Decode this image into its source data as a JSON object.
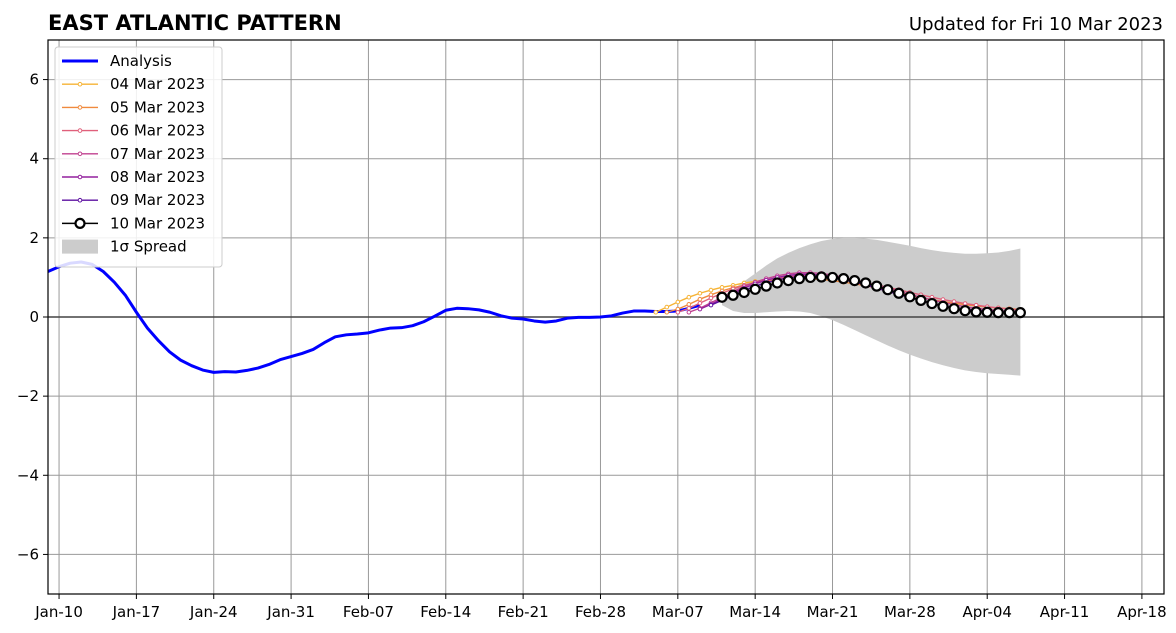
{
  "chart_data": {
    "type": "line",
    "title": "EAST ATLANTIC PATTERN",
    "subtitle": "Updated for Fri 10 Mar 2023",
    "xlabel": "",
    "ylabel": "",
    "xlim": [
      "2023-01-09",
      "2023-04-20"
    ],
    "ylim": [
      -7,
      7
    ],
    "x_ticks": [
      "Jan-10",
      "Jan-17",
      "Jan-24",
      "Jan-31",
      "Feb-07",
      "Feb-14",
      "Feb-21",
      "Feb-28",
      "Mar-07",
      "Mar-14",
      "Mar-21",
      "Mar-28",
      "Apr-04",
      "Apr-11",
      "Apr-18"
    ],
    "y_ticks": [
      6,
      4,
      2,
      0,
      -2,
      -4,
      -6
    ],
    "y_tick_labels": [
      "6",
      "4",
      "2",
      "0",
      "−2",
      "−4",
      "−6"
    ],
    "grid": true,
    "legend_position": "top-left",
    "colors": {
      "analysis": "#0000ff",
      "spread": "#cccccc",
      "zero_line": "#444444",
      "grid": "#999999",
      "mar04": "#f6b335",
      "mar05": "#f08a3e",
      "mar06": "#e0607b",
      "mar07": "#c0418f",
      "mar08": "#93209e",
      "mar09": "#5c0fa0",
      "mar10": "#000000"
    },
    "legend": [
      "Analysis",
      "04 Mar 2023",
      "05 Mar 2023",
      "06 Mar 2023",
      "07 Mar 2023",
      "08 Mar 2023",
      "09 Mar 2023",
      "10 Mar 2023",
      "1σ Spread"
    ],
    "analysis": {
      "name": "Analysis",
      "points": [
        [
          "2023-01-09",
          1.15
        ],
        [
          "2023-01-10",
          1.27
        ],
        [
          "2023-01-11",
          1.36
        ],
        [
          "2023-01-12",
          1.39
        ],
        [
          "2023-01-13",
          1.33
        ],
        [
          "2023-01-14",
          1.15
        ],
        [
          "2023-01-15",
          0.88
        ],
        [
          "2023-01-16",
          0.55
        ],
        [
          "2023-01-17",
          0.12
        ],
        [
          "2023-01-18",
          -0.28
        ],
        [
          "2023-01-19",
          -0.6
        ],
        [
          "2023-01-20",
          -0.88
        ],
        [
          "2023-01-21",
          -1.09
        ],
        [
          "2023-01-22",
          -1.23
        ],
        [
          "2023-01-23",
          -1.34
        ],
        [
          "2023-01-24",
          -1.4
        ],
        [
          "2023-01-25",
          -1.38
        ],
        [
          "2023-01-26",
          -1.39
        ],
        [
          "2023-01-27",
          -1.35
        ],
        [
          "2023-01-28",
          -1.29
        ],
        [
          "2023-01-29",
          -1.2
        ],
        [
          "2023-01-30",
          -1.08
        ],
        [
          "2023-01-31",
          -1.0
        ],
        [
          "2023-02-01",
          -0.92
        ],
        [
          "2023-02-02",
          -0.82
        ],
        [
          "2023-02-03",
          -0.65
        ],
        [
          "2023-02-04",
          -0.5
        ],
        [
          "2023-02-05",
          -0.45
        ],
        [
          "2023-02-06",
          -0.43
        ],
        [
          "2023-02-07",
          -0.4
        ],
        [
          "2023-02-08",
          -0.33
        ],
        [
          "2023-02-09",
          -0.28
        ],
        [
          "2023-02-10",
          -0.27
        ],
        [
          "2023-02-11",
          -0.22
        ],
        [
          "2023-02-12",
          -0.12
        ],
        [
          "2023-02-13",
          0.02
        ],
        [
          "2023-02-14",
          0.17
        ],
        [
          "2023-02-15",
          0.22
        ],
        [
          "2023-02-16",
          0.21
        ],
        [
          "2023-02-17",
          0.18
        ],
        [
          "2023-02-18",
          0.12
        ],
        [
          "2023-02-19",
          0.03
        ],
        [
          "2023-02-20",
          -0.03
        ],
        [
          "2023-02-21",
          -0.05
        ],
        [
          "2023-02-22",
          -0.1
        ],
        [
          "2023-02-23",
          -0.13
        ],
        [
          "2023-02-24",
          -0.1
        ],
        [
          "2023-02-25",
          -0.03
        ],
        [
          "2023-02-26",
          -0.01
        ],
        [
          "2023-02-27",
          -0.01
        ],
        [
          "2023-02-28",
          0.0
        ],
        [
          "2023-03-01",
          0.03
        ],
        [
          "2023-03-02",
          0.1
        ],
        [
          "2023-03-03",
          0.15
        ],
        [
          "2023-03-04",
          0.15
        ],
        [
          "2023-03-05",
          0.14
        ],
        [
          "2023-03-06",
          0.14
        ],
        [
          "2023-03-07",
          0.15
        ],
        [
          "2023-03-08",
          0.22
        ],
        [
          "2023-03-09",
          0.3
        ]
      ]
    },
    "forecasts": [
      {
        "name": "04 Mar 2023",
        "color_key": "mar04",
        "start": "2023-03-05",
        "values": [
          0.12,
          0.25,
          0.38,
          0.5,
          0.6,
          0.68,
          0.75,
          0.8,
          0.86,
          0.9,
          0.94,
          0.96,
          0.97
        ]
      },
      {
        "name": "05 Mar 2023",
        "color_key": "mar05",
        "start": "2023-03-06",
        "values": [
          0.12,
          0.2,
          0.32,
          0.45,
          0.56,
          0.66,
          0.74,
          0.8,
          0.86,
          0.91,
          0.95,
          0.97,
          0.98,
          0.97,
          0.95,
          0.92,
          0.88,
          0.84,
          0.79,
          0.73,
          0.67,
          0.61,
          0.55,
          0.49,
          0.44,
          0.39,
          0.35,
          0.31,
          0.28,
          0.25,
          0.23,
          0.21,
          0.19
        ]
      },
      {
        "name": "06 Mar 2023",
        "color_key": "mar06",
        "start": "2023-03-07",
        "values": [
          0.12,
          0.22,
          0.35,
          0.48,
          0.6,
          0.71,
          0.8,
          0.87,
          0.93,
          0.98,
          1.02,
          1.04,
          1.05,
          1.04,
          1.01,
          0.97,
          0.92,
          0.87,
          0.81,
          0.75,
          0.69,
          0.62,
          0.56,
          0.5,
          0.44,
          0.39,
          0.34,
          0.3,
          0.26,
          0.23,
          0.2,
          0.18
        ]
      },
      {
        "name": "07 Mar 2023",
        "color_key": "mar07",
        "start": "2023-03-08",
        "values": [
          0.12,
          0.22,
          0.36,
          0.5,
          0.64,
          0.77,
          0.88,
          0.97,
          1.04,
          1.09,
          1.12,
          1.12,
          1.1,
          1.06,
          1.0,
          0.94,
          0.87,
          0.8,
          0.72,
          0.65,
          0.57,
          0.5,
          0.43,
          0.37,
          0.31,
          0.26,
          0.22,
          0.19,
          0.16,
          0.14,
          0.13
        ]
      },
      {
        "name": "08 Mar 2023",
        "color_key": "mar08",
        "start": "2023-03-09",
        "values": [
          0.2,
          0.32,
          0.46,
          0.6,
          0.73,
          0.84,
          0.93,
          1.0,
          1.05,
          1.08,
          1.08,
          1.06,
          1.02,
          0.96,
          0.89,
          0.81,
          0.73,
          0.65,
          0.57,
          0.49,
          0.42,
          0.35,
          0.29,
          0.24,
          0.2,
          0.17,
          0.15,
          0.14,
          0.13,
          0.12
        ]
      },
      {
        "name": "09 Mar 2023",
        "color_key": "mar09",
        "start": "2023-03-10",
        "values": [
          0.3,
          0.42,
          0.55,
          0.67,
          0.78,
          0.87,
          0.94,
          0.99,
          1.02,
          1.03,
          1.02,
          0.99,
          0.94,
          0.88,
          0.81,
          0.73,
          0.65,
          0.57,
          0.49,
          0.41,
          0.34,
          0.28,
          0.23,
          0.19,
          0.16,
          0.14,
          0.13,
          0.12,
          0.12
        ]
      },
      {
        "name": "10 Mar 2023",
        "color_key": "mar10",
        "start": "2023-03-11",
        "values": [
          0.5,
          0.55,
          0.62,
          0.7,
          0.78,
          0.86,
          0.92,
          0.97,
          1.0,
          1.01,
          1.0,
          0.97,
          0.92,
          0.86,
          0.78,
          0.69,
          0.6,
          0.51,
          0.42,
          0.34,
          0.27,
          0.21,
          0.16,
          0.13,
          0.12,
          0.11,
          0.11,
          0.11
        ]
      }
    ],
    "spread": {
      "name": "1σ Spread",
      "start": "2023-03-11",
      "upper": [
        0.5,
        0.7,
        0.9,
        1.1,
        1.3,
        1.48,
        1.62,
        1.74,
        1.84,
        1.92,
        1.97,
        2.0,
        2.0,
        1.98,
        1.95,
        1.9,
        1.85,
        1.8,
        1.74,
        1.69,
        1.65,
        1.62,
        1.6,
        1.6,
        1.61,
        1.63,
        1.67,
        1.73
      ],
      "lower": [
        0.3,
        0.15,
        0.1,
        0.1,
        0.12,
        0.14,
        0.15,
        0.14,
        0.1,
        0.02,
        -0.08,
        -0.2,
        -0.33,
        -0.46,
        -0.59,
        -0.72,
        -0.84,
        -0.95,
        -1.05,
        -1.14,
        -1.22,
        -1.29,
        -1.35,
        -1.39,
        -1.42,
        -1.44,
        -1.46,
        -1.48
      ]
    }
  }
}
